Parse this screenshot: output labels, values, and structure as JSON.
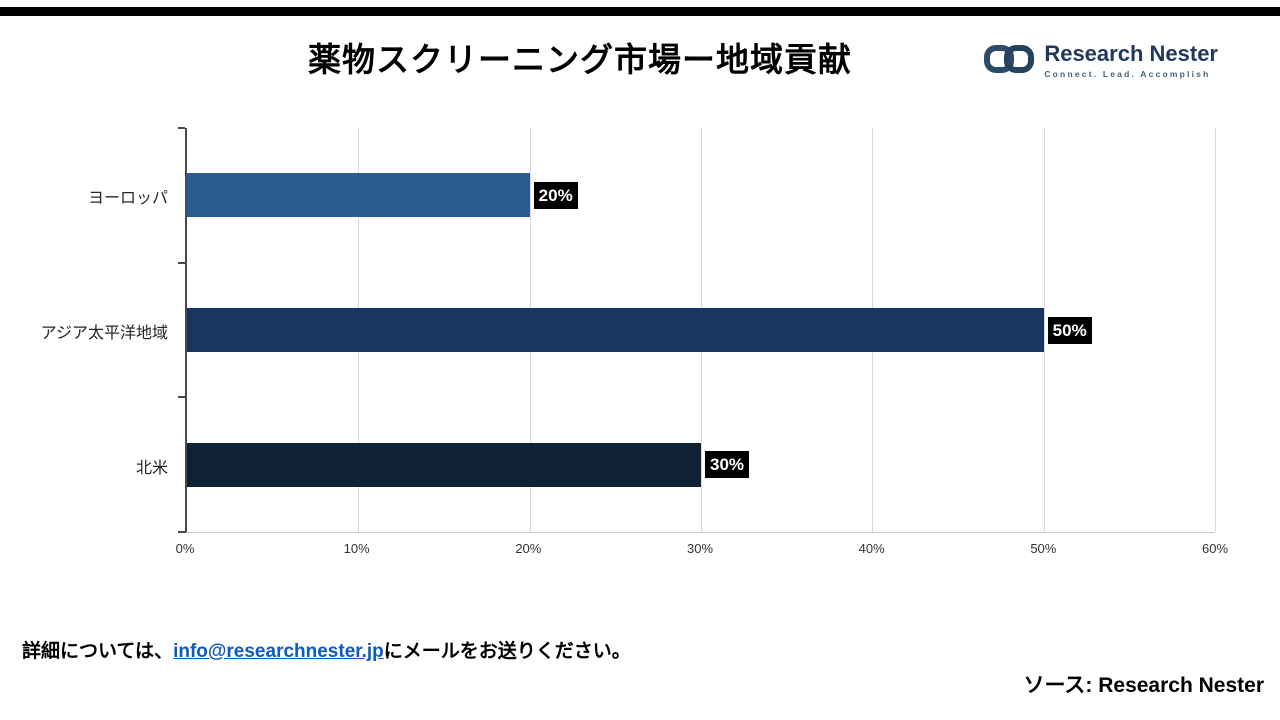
{
  "header": {
    "title": "薬物スクリーニング市場ー地域貢献",
    "logo": {
      "name": "Research Nester",
      "tagline": "Connect. Lead. Accomplish"
    }
  },
  "chart_data": {
    "type": "bar",
    "orientation": "horizontal",
    "title": "薬物スクリーニング市場ー地域貢献",
    "categories": [
      "ヨーロッパ",
      "アジア太平洋地域",
      "北米"
    ],
    "values": [
      20,
      50,
      30
    ],
    "data_labels": [
      "20%",
      "50%",
      "30%"
    ],
    "bar_colors": [
      "#295d91",
      "#17375e",
      "#0e2233"
    ],
    "x_ticks": [
      "0%",
      "10%",
      "20%",
      "30%",
      "40%",
      "50%",
      "60%"
    ],
    "xlim": [
      0,
      60
    ],
    "grid": true,
    "legend": "none"
  },
  "footer": {
    "contact_prefix": "詳細については、",
    "contact_email": "info@researchnester.jp",
    "contact_suffix": "にメールをお送りください。",
    "source_label": "ソース: Research Nester"
  },
  "colors": {
    "link": "#0b5bc4",
    "data_label_bg": "#000000",
    "gridline": "#d9d9d9"
  }
}
